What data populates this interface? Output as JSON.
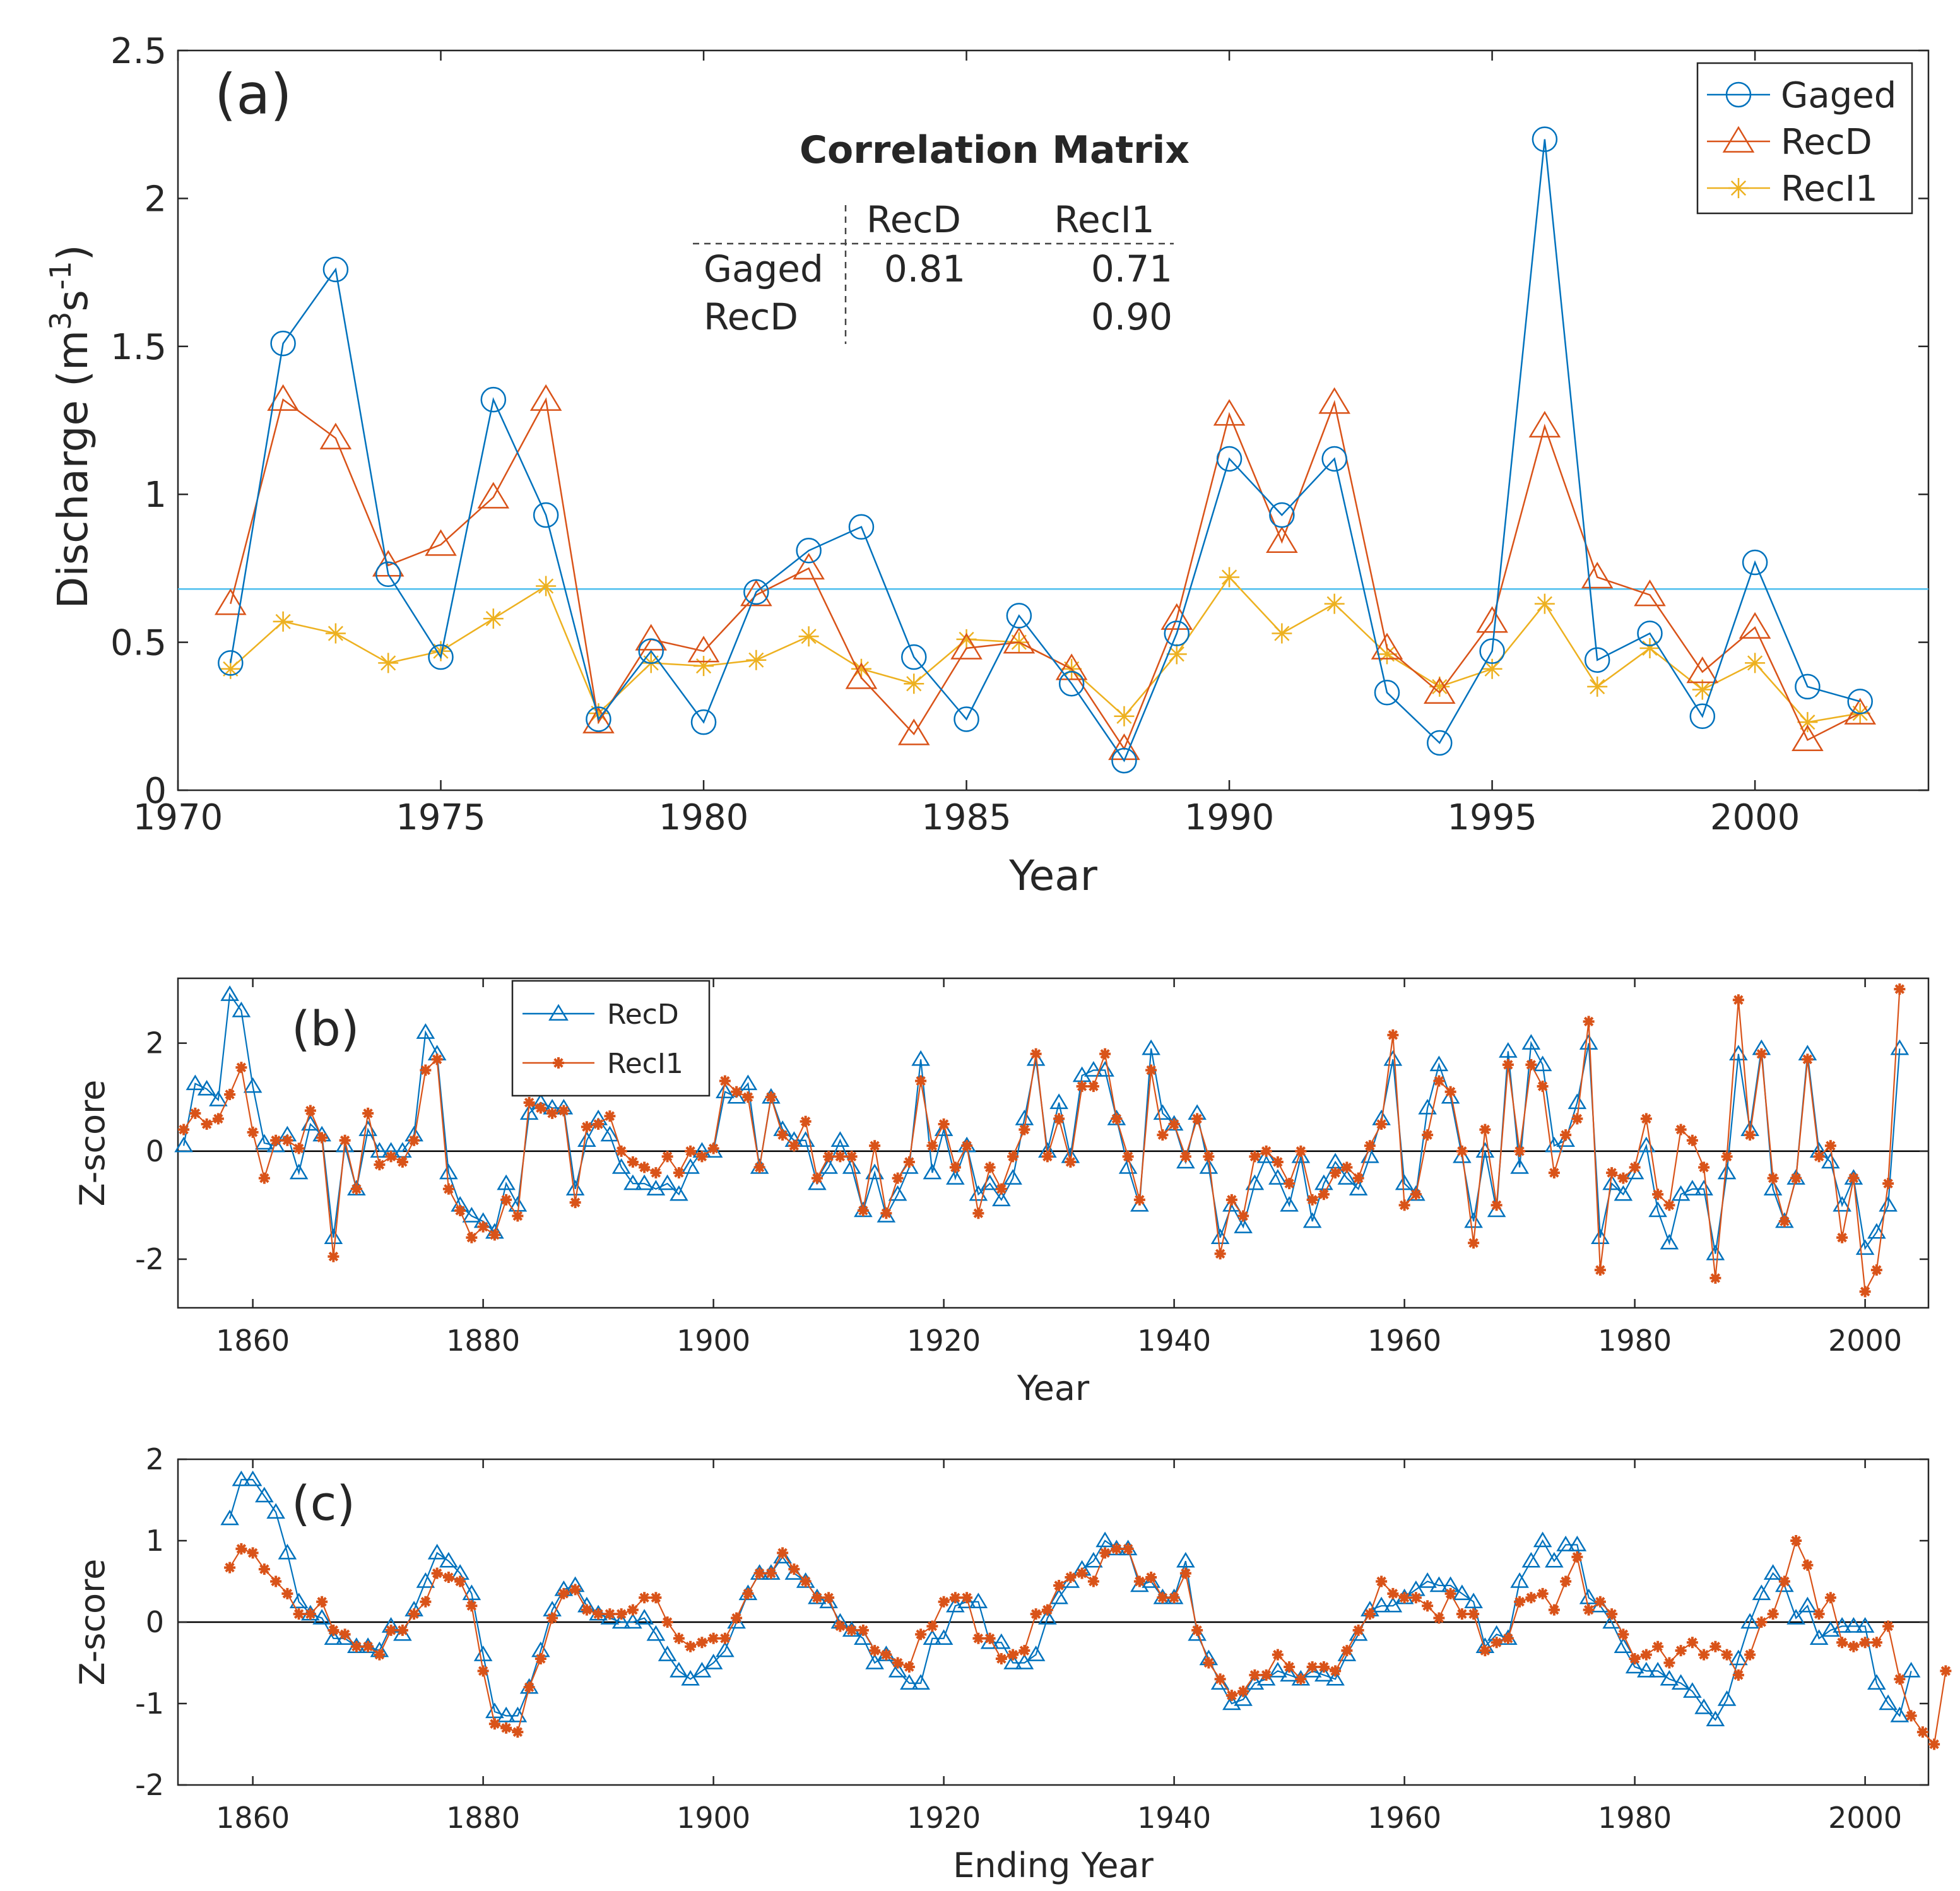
{
  "colors": {
    "gaged": "#0072BD",
    "recd_a": "#D95319",
    "recl1_a": "#EDB120",
    "recd_bc": "#0072BD",
    "recl1_bc": "#D95319",
    "axis": "#262626",
    "mean_line": "#4DBEEE"
  },
  "chart_data": [
    {
      "id": "a",
      "type": "line",
      "panel_label": "(a)",
      "title": "",
      "xlabel": "Year",
      "ylabel": "Discharge (m",
      "ylabel_sup1": "3",
      "ylabel_mid": "s",
      "ylabel_sup2": "-1",
      "ylabel_end": ")",
      "xlim": [
        1970,
        2003.3
      ],
      "ylim": [
        0,
        2.5
      ],
      "xticks": [
        1970,
        1975,
        1980,
        1985,
        1990,
        1995,
        2000
      ],
      "yticks": [
        0,
        0.5,
        1,
        1.5,
        2,
        2.5
      ],
      "ytick_labels": [
        "0",
        "0.5",
        "1",
        "1.5",
        "2",
        "2.5"
      ],
      "x": [
        1971,
        1972,
        1973,
        1974,
        1975,
        1976,
        1977,
        1978,
        1979,
        1980,
        1981,
        1982,
        1983,
        1984,
        1985,
        1986,
        1987,
        1988,
        1989,
        1990,
        1991,
        1992,
        1993,
        1994,
        1995,
        1996,
        1997,
        1998,
        1999,
        2000,
        2001,
        2002
      ],
      "mean_line_value": 0.68,
      "series": [
        {
          "name": "Gaged",
          "marker": "circle",
          "values": [
            0.43,
            1.51,
            1.76,
            0.73,
            0.45,
            1.32,
            0.93,
            0.24,
            0.47,
            0.23,
            0.67,
            0.81,
            0.89,
            0.45,
            0.24,
            0.59,
            0.36,
            0.1,
            0.53,
            1.12,
            0.93,
            1.12,
            0.33,
            0.16,
            0.47,
            2.2,
            0.44,
            0.53,
            0.25,
            0.77,
            0.35,
            0.3
          ]
        },
        {
          "name": "RecD",
          "marker": "triangle",
          "values": [
            0.63,
            1.32,
            1.19,
            0.76,
            0.83,
            0.99,
            1.32,
            0.23,
            0.51,
            0.47,
            0.66,
            0.75,
            0.38,
            0.19,
            0.48,
            0.5,
            0.41,
            0.14,
            0.58,
            1.27,
            0.84,
            1.31,
            0.48,
            0.33,
            0.57,
            1.23,
            0.72,
            0.66,
            0.4,
            0.55,
            0.17,
            0.26
          ]
        },
        {
          "name": "RecI1",
          "marker": "star",
          "values": [
            0.41,
            0.57,
            0.53,
            0.43,
            0.47,
            0.58,
            0.69,
            0.26,
            0.43,
            0.42,
            0.44,
            0.52,
            0.41,
            0.36,
            0.51,
            0.5,
            0.41,
            0.25,
            0.46,
            0.72,
            0.53,
            0.63,
            0.46,
            0.35,
            0.41,
            0.63,
            0.35,
            0.48,
            0.34,
            0.43,
            0.23,
            0.26
          ]
        }
      ],
      "legend": [
        "Gaged",
        "RecD",
        "RecI1"
      ],
      "legend_position": "top-right",
      "correlation_matrix": {
        "title": "Correlation Matrix",
        "col_headers": [
          "RecD",
          "RecI1"
        ],
        "row_headers": [
          "Gaged",
          "RecD"
        ],
        "cells": [
          [
            "0.81",
            "0.71"
          ],
          [
            "",
            "0.90"
          ]
        ]
      }
    },
    {
      "id": "b",
      "type": "line",
      "panel_label": "(b)",
      "xlabel": "Year",
      "ylabel": "Z-score",
      "xlim": [
        1853.5,
        2005.5
      ],
      "ylim": [
        -2.9,
        3.2
      ],
      "xticks": [
        1860,
        1880,
        1900,
        1920,
        1940,
        1960,
        1980,
        2000
      ],
      "yticks": [
        -2,
        0,
        2
      ],
      "ytick_labels": [
        "-2",
        "0",
        "2"
      ],
      "x_start": 1854,
      "series": [
        {
          "name": "RecD",
          "marker": "triangle",
          "values": [
            0.1,
            1.25,
            1.15,
            0.95,
            2.9,
            2.6,
            1.2,
            0.15,
            0.1,
            0.3,
            -0.4,
            0.5,
            0.3,
            -1.6,
            0.1,
            -0.7,
            0.4,
            0.0,
            0.0,
            0.0,
            0.3,
            2.2,
            1.8,
            -0.4,
            -1.0,
            -1.2,
            -1.3,
            -1.5,
            -0.6,
            -1.0,
            0.7,
            0.9,
            0.8,
            0.8,
            -0.7,
            0.2,
            0.6,
            0.3,
            -0.3,
            -0.6,
            -0.6,
            -0.7,
            -0.6,
            -0.8,
            -0.3,
            0.0,
            0.0,
            1.1,
            1.0,
            1.25,
            -0.3,
            1.0,
            0.4,
            0.2,
            0.2,
            -0.6,
            -0.3,
            0.2,
            -0.3,
            -1.1,
            -0.4,
            -1.2,
            -0.8,
            -0.3,
            1.7,
            -0.4,
            0.4,
            -0.5,
            0.1,
            -0.8,
            -0.6,
            -0.9,
            -0.5,
            0.6,
            1.7,
            0.0,
            0.9,
            -0.1,
            1.4,
            1.5,
            1.5,
            0.6,
            -0.3,
            -1.0,
            1.9,
            0.7,
            0.5,
            -0.2,
            0.7,
            -0.3,
            -1.6,
            -1.0,
            -1.4,
            -0.6,
            -0.1,
            -0.5,
            -1.0,
            -0.1,
            -1.3,
            -0.6,
            -0.2,
            -0.5,
            -0.7,
            -0.1,
            0.6,
            1.7,
            -0.6,
            -0.8,
            0.8,
            1.6,
            1.0,
            -0.1,
            -1.3,
            0.0,
            -1.1,
            1.85,
            -0.3,
            2.0,
            1.6,
            0.1,
            0.2,
            0.9,
            2.0,
            -1.6,
            -0.6,
            -0.8,
            -0.4,
            0.1,
            -1.1,
            -1.7,
            -0.8,
            -0.7,
            -0.7,
            -1.9,
            -0.4,
            1.8,
            0.4,
            1.9,
            -0.7,
            -1.3,
            -0.5,
            1.8,
            0.0,
            -0.2,
            -1.0,
            -0.5,
            -1.8,
            -1.5,
            -1.0,
            1.9
          ]
        },
        {
          "name": "RecI1",
          "marker": "star",
          "values": [
            0.4,
            0.7,
            0.5,
            0.6,
            1.05,
            1.55,
            0.35,
            -0.5,
            0.2,
            0.2,
            0.05,
            0.75,
            0.25,
            -1.95,
            0.2,
            -0.7,
            0.7,
            -0.25,
            -0.1,
            -0.2,
            0.2,
            1.5,
            1.7,
            -0.7,
            -1.1,
            -1.6,
            -1.4,
            -1.55,
            -0.9,
            -1.2,
            0.9,
            0.8,
            0.7,
            0.75,
            -0.95,
            0.45,
            0.5,
            0.65,
            0.0,
            -0.2,
            -0.3,
            -0.4,
            -0.1,
            -0.4,
            0.0,
            -0.1,
            0.05,
            1.3,
            1.1,
            1.0,
            -0.3,
            1.0,
            0.3,
            0.1,
            0.55,
            -0.5,
            -0.1,
            -0.1,
            -0.1,
            -1.1,
            0.1,
            -1.15,
            -0.5,
            -0.2,
            1.3,
            0.1,
            0.5,
            -0.3,
            0.1,
            -1.15,
            -0.3,
            -0.7,
            -0.1,
            0.4,
            1.8,
            -0.1,
            0.6,
            -0.2,
            1.2,
            1.2,
            1.8,
            0.6,
            -0.1,
            -0.9,
            1.5,
            0.3,
            0.5,
            -0.1,
            0.6,
            -0.1,
            -1.9,
            -0.9,
            -1.2,
            -0.1,
            0.0,
            -0.2,
            -0.6,
            0.0,
            -0.9,
            -0.8,
            -0.4,
            -0.3,
            -0.5,
            0.1,
            0.5,
            2.15,
            -1.0,
            -0.8,
            0.3,
            1.3,
            1.1,
            0.0,
            -1.7,
            0.4,
            -1.0,
            1.6,
            0.0,
            1.6,
            1.2,
            -0.4,
            0.3,
            0.6,
            2.4,
            -2.2,
            -0.4,
            -0.5,
            -0.3,
            0.6,
            -0.8,
            -1.0,
            0.4,
            0.2,
            -0.3,
            -2.35,
            -0.1,
            2.8,
            0.3,
            1.8,
            -0.5,
            -1.3,
            -0.5,
            1.7,
            -0.1,
            0.1,
            -1.6,
            -0.5,
            -2.6,
            -2.2,
            -0.6,
            3.0
          ]
        }
      ],
      "legend": [
        "RecD",
        "RecI1"
      ],
      "legend_position": "top-left"
    },
    {
      "id": "c",
      "type": "line",
      "panel_label": "(c)",
      "xlabel": "Ending Year",
      "ylabel": "Z-score",
      "xlim": [
        1853.5,
        2005.5
      ],
      "ylim": [
        -2,
        2
      ],
      "xticks": [
        1860,
        1880,
        1900,
        1920,
        1940,
        1960,
        1980,
        2000
      ],
      "yticks": [
        -2,
        -1,
        0,
        1,
        2
      ],
      "ytick_labels": [
        "-2",
        "-1",
        "0",
        "1",
        "2"
      ],
      "x_start": 1858,
      "series": [
        {
          "name": "RecD",
          "marker": "triangle",
          "values": [
            1.27,
            1.75,
            1.75,
            1.55,
            1.35,
            0.85,
            0.25,
            0.1,
            0.05,
            -0.2,
            -0.2,
            -0.3,
            -0.3,
            -0.35,
            -0.05,
            -0.15,
            0.15,
            0.5,
            0.85,
            0.75,
            0.6,
            0.35,
            -0.4,
            -1.1,
            -1.15,
            -1.15,
            -0.8,
            -0.35,
            0.15,
            0.4,
            0.45,
            0.2,
            0.1,
            0.05,
            0.0,
            0.0,
            0.05,
            -0.15,
            -0.4,
            -0.6,
            -0.7,
            -0.6,
            -0.5,
            -0.35,
            0.0,
            0.35,
            0.6,
            0.6,
            0.8,
            0.6,
            0.5,
            0.3,
            0.25,
            0.0,
            -0.1,
            -0.2,
            -0.5,
            -0.4,
            -0.6,
            -0.75,
            -0.75,
            -0.2,
            -0.2,
            0.2,
            0.25,
            0.25,
            -0.25,
            -0.25,
            -0.5,
            -0.5,
            -0.4,
            0.05,
            0.3,
            0.5,
            0.65,
            0.75,
            1.0,
            0.9,
            0.9,
            0.45,
            0.5,
            0.3,
            0.3,
            0.75,
            -0.15,
            -0.45,
            -0.75,
            -1.0,
            -0.95,
            -0.75,
            -0.7,
            -0.6,
            -0.65,
            -0.7,
            -0.6,
            -0.65,
            -0.7,
            -0.4,
            -0.15,
            0.15,
            0.2,
            0.2,
            0.3,
            0.4,
            0.5,
            0.45,
            0.45,
            0.35,
            0.25,
            -0.3,
            -0.15,
            -0.2,
            0.5,
            0.75,
            1.0,
            0.75,
            0.95,
            0.95,
            0.3,
            0.2,
            0.0,
            -0.3,
            -0.55,
            -0.6,
            -0.6,
            -0.7,
            -0.75,
            -0.85,
            -1.05,
            -1.2,
            -0.95,
            -0.45,
            0.0,
            0.35,
            0.6,
            0.45,
            0.05,
            0.2,
            -0.2,
            -0.1,
            -0.05,
            -0.05,
            -0.05,
            -0.75,
            -1.0,
            -1.15,
            -0.6
          ]
        },
        {
          "name": "RecI1",
          "marker": "star",
          "values": [
            0.67,
            0.9,
            0.85,
            0.65,
            0.5,
            0.35,
            0.1,
            0.1,
            0.25,
            -0.1,
            -0.15,
            -0.3,
            -0.3,
            -0.4,
            -0.1,
            -0.1,
            0.1,
            0.25,
            0.6,
            0.55,
            0.5,
            0.2,
            -0.6,
            -1.25,
            -1.3,
            -1.35,
            -0.8,
            -0.45,
            0.05,
            0.35,
            0.4,
            0.15,
            0.1,
            0.1,
            0.1,
            0.15,
            0.3,
            0.3,
            0.0,
            -0.2,
            -0.3,
            -0.25,
            -0.2,
            -0.2,
            0.05,
            0.35,
            0.6,
            0.6,
            0.85,
            0.65,
            0.5,
            0.3,
            0.3,
            -0.05,
            -0.1,
            -0.1,
            -0.35,
            -0.4,
            -0.5,
            -0.55,
            -0.15,
            -0.05,
            0.25,
            0.3,
            0.3,
            -0.2,
            -0.2,
            -0.45,
            -0.4,
            -0.35,
            0.1,
            0.15,
            0.45,
            0.55,
            0.6,
            0.5,
            0.85,
            0.9,
            0.9,
            0.5,
            0.55,
            0.3,
            0.3,
            0.6,
            -0.1,
            -0.5,
            -0.7,
            -0.9,
            -0.85,
            -0.65,
            -0.65,
            -0.4,
            -0.55,
            -0.7,
            -0.55,
            -0.55,
            -0.6,
            -0.35,
            -0.1,
            0.1,
            0.5,
            0.35,
            0.3,
            0.3,
            0.2,
            0.05,
            0.35,
            0.1,
            0.1,
            -0.35,
            -0.25,
            -0.2,
            0.25,
            0.3,
            0.35,
            0.15,
            0.5,
            0.8,
            0.15,
            0.25,
            0.1,
            -0.15,
            -0.45,
            -0.4,
            -0.3,
            -0.5,
            -0.35,
            -0.25,
            -0.4,
            -0.3,
            -0.4,
            -0.65,
            -0.4,
            0.0,
            0.1,
            0.5,
            1.0,
            0.7,
            0.1,
            0.3,
            -0.25,
            -0.3,
            -0.25,
            -0.25,
            -0.05,
            -0.7,
            -1.15,
            -1.35,
            -1.5,
            -0.6
          ]
        }
      ],
      "legend": [],
      "legend_position": ""
    }
  ]
}
